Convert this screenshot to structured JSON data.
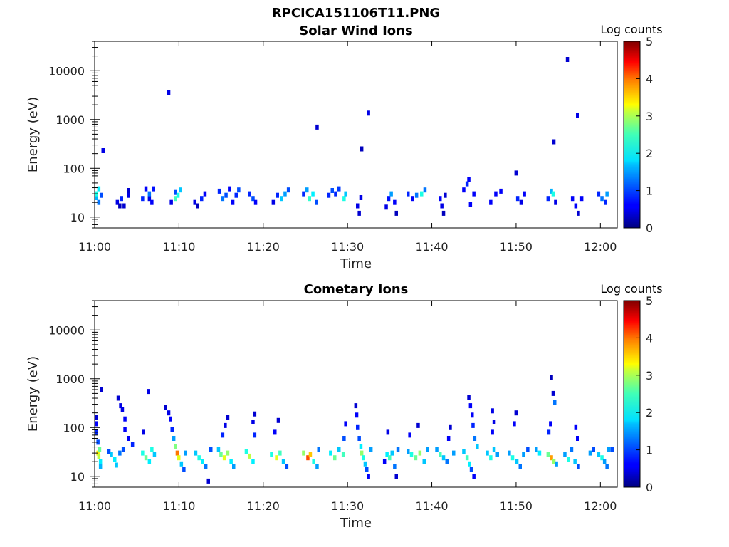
{
  "figure_title": "RPCICA151106T11.PNG",
  "chart_data": [
    {
      "type": "heatmap",
      "title": "Solar Wind Ions",
      "xlabel": "Time",
      "ylabel": "Energy (eV)",
      "x_ticks": [
        "11:00",
        "11:10",
        "11:20",
        "11:30",
        "11:40",
        "11:50",
        "12:00"
      ],
      "xlim_minutes": [
        0,
        62
      ],
      "y_ticks": [
        10,
        100,
        1000,
        10000
      ],
      "ylim": [
        6,
        40000
      ],
      "y_scale": "log",
      "colorbar_label": "Log counts",
      "colorbar_ticks": [
        0,
        1,
        2,
        3,
        4,
        5
      ],
      "color_range": [
        0,
        5
      ],
      "colormap": "jet",
      "grid": false,
      "cells": [
        [
          0.0,
          25,
          1.5
        ],
        [
          0.0,
          30,
          2.0
        ],
        [
          0.3,
          38,
          1.8
        ],
        [
          0.3,
          20,
          1.2
        ],
        [
          0.6,
          28,
          1.0
        ],
        [
          0.8,
          230,
          0.5
        ],
        [
          2.5,
          20,
          0.5
        ],
        [
          2.8,
          17,
          0.3
        ],
        [
          3.0,
          24,
          0.8
        ],
        [
          3.3,
          17,
          0.4
        ],
        [
          3.8,
          28,
          0.5
        ],
        [
          3.8,
          35,
          0.4
        ],
        [
          5.5,
          24,
          0.8
        ],
        [
          5.9,
          38,
          0.6
        ],
        [
          6.3,
          24,
          0.5
        ],
        [
          6.3,
          30,
          1.2
        ],
        [
          6.6,
          20,
          0.6
        ],
        [
          6.8,
          38,
          0.7
        ],
        [
          8.6,
          3600,
          0.5
        ],
        [
          8.9,
          20,
          0.5
        ],
        [
          9.4,
          32,
          1.0
        ],
        [
          9.4,
          24,
          2.2
        ],
        [
          9.7,
          28,
          2.0
        ],
        [
          10.0,
          36,
          1.6
        ],
        [
          11.7,
          20,
          0.5
        ],
        [
          12.0,
          17,
          0.3
        ],
        [
          12.5,
          24,
          0.8
        ],
        [
          12.9,
          30,
          0.6
        ],
        [
          14.6,
          34,
          0.8
        ],
        [
          15.0,
          24,
          1.2
        ],
        [
          15.4,
          28,
          1.0
        ],
        [
          15.8,
          38,
          0.6
        ],
        [
          16.2,
          20,
          0.6
        ],
        [
          16.6,
          28,
          0.8
        ],
        [
          16.9,
          36,
          1.0
        ],
        [
          18.2,
          30,
          0.8
        ],
        [
          18.6,
          24,
          1.0
        ],
        [
          18.9,
          20,
          0.6
        ],
        [
          21.0,
          20,
          0.5
        ],
        [
          21.5,
          28,
          0.8
        ],
        [
          22.0,
          24,
          1.6
        ],
        [
          22.4,
          30,
          1.4
        ],
        [
          22.8,
          36,
          1.0
        ],
        [
          24.6,
          30,
          0.8
        ],
        [
          25.0,
          36,
          1.4
        ],
        [
          25.3,
          24,
          2.1
        ],
        [
          25.7,
          30,
          1.8
        ],
        [
          26.1,
          20,
          1.0
        ],
        [
          26.2,
          700,
          0.4
        ],
        [
          27.6,
          28,
          0.8
        ],
        [
          28.0,
          35,
          1.0
        ],
        [
          28.4,
          30,
          0.8
        ],
        [
          28.8,
          38,
          0.9
        ],
        [
          29.4,
          24,
          2.0
        ],
        [
          29.6,
          30,
          1.6
        ],
        [
          31.0,
          17,
          0.5
        ],
        [
          31.2,
          12,
          0.4
        ],
        [
          31.4,
          25,
          0.5
        ],
        [
          31.5,
          250,
          0.3
        ],
        [
          32.3,
          1350,
          0.5
        ],
        [
          34.4,
          16,
          0.5
        ],
        [
          34.7,
          24,
          0.7
        ],
        [
          35.0,
          30,
          1.4
        ],
        [
          35.4,
          20,
          0.6
        ],
        [
          35.6,
          12,
          0.3
        ],
        [
          37.0,
          30,
          0.8
        ],
        [
          37.5,
          24,
          0.6
        ],
        [
          38.0,
          28,
          1.2
        ],
        [
          38.6,
          30,
          2.0
        ],
        [
          39.0,
          36,
          1.2
        ],
        [
          40.8,
          24,
          0.6
        ],
        [
          41.0,
          17,
          0.5
        ],
        [
          41.2,
          12,
          0.3
        ],
        [
          41.4,
          28,
          0.4
        ],
        [
          43.6,
          36,
          0.6
        ],
        [
          44.0,
          48,
          0.8
        ],
        [
          44.2,
          60,
          0.6
        ],
        [
          44.4,
          18,
          0.6
        ],
        [
          44.8,
          30,
          0.6
        ],
        [
          46.8,
          20,
          0.6
        ],
        [
          47.4,
          30,
          0.6
        ],
        [
          48.0,
          34,
          0.6
        ],
        [
          49.8,
          80,
          0.4
        ],
        [
          50.0,
          24,
          0.8
        ],
        [
          50.4,
          20,
          0.5
        ],
        [
          50.8,
          30,
          0.6
        ],
        [
          53.6,
          24,
          0.8
        ],
        [
          54.0,
          34,
          1.5
        ],
        [
          54.2,
          30,
          2.0
        ],
        [
          54.5,
          20,
          0.5
        ],
        [
          54.3,
          350,
          0.4
        ],
        [
          55.9,
          17000,
          0.4
        ],
        [
          57.1,
          1200,
          0.5
        ],
        [
          56.5,
          24,
          0.6
        ],
        [
          56.9,
          17,
          0.6
        ],
        [
          57.2,
          12,
          0.4
        ],
        [
          57.6,
          24,
          0.6
        ],
        [
          59.6,
          30,
          0.8
        ],
        [
          60.0,
          24,
          1.2
        ],
        [
          60.4,
          20,
          0.8
        ],
        [
          60.6,
          30,
          1.4
        ]
      ]
    },
    {
      "type": "heatmap",
      "title": "Cometary Ions",
      "xlabel": "Time",
      "ylabel": "Energy (eV)",
      "x_ticks": [
        "11:00",
        "11:10",
        "11:20",
        "11:30",
        "11:40",
        "11:50",
        "12:00"
      ],
      "xlim_minutes": [
        0,
        62
      ],
      "y_ticks": [
        10,
        100,
        1000,
        10000
      ],
      "ylim": [
        6,
        40000
      ],
      "y_scale": "log",
      "colorbar_label": "Log counts",
      "colorbar_ticks": [
        0,
        1,
        2,
        3,
        4,
        5
      ],
      "color_range": [
        0,
        5
      ],
      "colormap": "jet",
      "grid": false,
      "cells": [
        [
          0.0,
          160,
          0.4
        ],
        [
          0.0,
          120,
          0.6
        ],
        [
          0.0,
          80,
          0.8
        ],
        [
          0.2,
          50,
          1.0
        ],
        [
          0.2,
          30,
          3.2
        ],
        [
          0.3,
          25,
          2.8
        ],
        [
          0.4,
          36,
          2.4
        ],
        [
          0.5,
          20,
          1.8
        ],
        [
          0.5,
          16,
          1.5
        ],
        [
          0.6,
          600,
          0.4
        ],
        [
          1.5,
          32,
          1.0
        ],
        [
          1.8,
          28,
          1.6
        ],
        [
          2.2,
          22,
          1.8
        ],
        [
          2.4,
          17,
          1.6
        ],
        [
          2.8,
          30,
          1.2
        ],
        [
          3.2,
          36,
          1.0
        ],
        [
          2.6,
          400,
          0.4
        ],
        [
          2.9,
          280,
          0.5
        ],
        [
          3.1,
          230,
          0.5
        ],
        [
          3.4,
          150,
          0.6
        ],
        [
          3.4,
          90,
          0.6
        ],
        [
          3.8,
          60,
          0.6
        ],
        [
          4.3,
          45,
          0.8
        ],
        [
          5.5,
          30,
          2.0
        ],
        [
          5.9,
          24,
          2.4
        ],
        [
          6.3,
          20,
          1.8
        ],
        [
          6.6,
          35,
          2.0
        ],
        [
          6.9,
          28,
          1.6
        ],
        [
          6.2,
          550,
          0.5
        ],
        [
          5.6,
          80,
          0.5
        ],
        [
          8.2,
          260,
          0.4
        ],
        [
          8.6,
          200,
          0.5
        ],
        [
          8.8,
          150,
          0.6
        ],
        [
          9.0,
          90,
          0.8
        ],
        [
          9.2,
          60,
          1.4
        ],
        [
          9.4,
          40,
          2.5
        ],
        [
          9.6,
          30,
          3.8
        ],
        [
          9.8,
          24,
          3.0
        ],
        [
          10.1,
          18,
          1.6
        ],
        [
          10.4,
          14,
          1.0
        ],
        [
          10.6,
          30,
          1.4
        ],
        [
          11.8,
          30,
          1.6
        ],
        [
          12.2,
          24,
          2.0
        ],
        [
          12.6,
          20,
          1.8
        ],
        [
          13.0,
          16,
          1.2
        ],
        [
          13.3,
          8,
          0.4
        ],
        [
          13.6,
          36,
          1.0
        ],
        [
          14.5,
          36,
          1.6
        ],
        [
          14.8,
          28,
          2.4
        ],
        [
          15.2,
          24,
          3.0
        ],
        [
          15.6,
          30,
          2.6
        ],
        [
          16.0,
          20,
          1.8
        ],
        [
          16.3,
          16,
          1.4
        ],
        [
          15.0,
          70,
          0.8
        ],
        [
          15.3,
          110,
          0.5
        ],
        [
          15.6,
          160,
          0.4
        ],
        [
          17.8,
          32,
          2.0
        ],
        [
          18.2,
          26,
          2.8
        ],
        [
          18.6,
          20,
          1.8
        ],
        [
          18.8,
          70,
          0.8
        ],
        [
          18.6,
          130,
          0.5
        ],
        [
          18.8,
          190,
          0.4
        ],
        [
          20.8,
          28,
          2.0
        ],
        [
          21.4,
          24,
          3.0
        ],
        [
          21.8,
          30,
          2.2
        ],
        [
          22.2,
          20,
          1.6
        ],
        [
          22.6,
          16,
          1.0
        ],
        [
          21.2,
          80,
          0.6
        ],
        [
          21.6,
          140,
          0.4
        ],
        [
          24.6,
          30,
          2.6
        ],
        [
          25.1,
          24,
          4.0
        ],
        [
          25.4,
          28,
          3.4
        ],
        [
          25.8,
          20,
          2.0
        ],
        [
          26.2,
          16,
          1.4
        ],
        [
          26.4,
          36,
          1.2
        ],
        [
          27.8,
          30,
          1.8
        ],
        [
          28.3,
          24,
          2.4
        ],
        [
          28.8,
          36,
          1.6
        ],
        [
          29.3,
          28,
          2.2
        ],
        [
          29.4,
          60,
          1.0
        ],
        [
          29.6,
          120,
          0.6
        ],
        [
          30.8,
          280,
          0.4
        ],
        [
          30.9,
          180,
          0.6
        ],
        [
          31.0,
          100,
          0.8
        ],
        [
          31.2,
          60,
          1.0
        ],
        [
          31.4,
          40,
          1.8
        ],
        [
          31.5,
          30,
          2.6
        ],
        [
          31.7,
          24,
          2.0
        ],
        [
          31.9,
          18,
          1.6
        ],
        [
          32.1,
          14,
          1.0
        ],
        [
          32.3,
          10,
          0.6
        ],
        [
          32.6,
          36,
          1.4
        ],
        [
          34.2,
          20,
          0.6
        ],
        [
          34.5,
          28,
          1.8
        ],
        [
          34.8,
          24,
          2.2
        ],
        [
          35.1,
          30,
          1.6
        ],
        [
          35.4,
          16,
          1.2
        ],
        [
          35.6,
          10,
          0.4
        ],
        [
          34.6,
          80,
          0.5
        ],
        [
          35.8,
          36,
          1.2
        ],
        [
          37.0,
          32,
          1.4
        ],
        [
          37.4,
          28,
          2.0
        ],
        [
          37.9,
          24,
          2.4
        ],
        [
          38.4,
          30,
          2.6
        ],
        [
          38.9,
          20,
          1.6
        ],
        [
          39.3,
          36,
          1.4
        ],
        [
          37.2,
          70,
          0.6
        ],
        [
          38.2,
          110,
          0.4
        ],
        [
          40.4,
          36,
          1.4
        ],
        [
          40.8,
          28,
          2.2
        ],
        [
          41.2,
          24,
          1.6
        ],
        [
          41.6,
          20,
          1.2
        ],
        [
          41.8,
          60,
          0.6
        ],
        [
          42.0,
          100,
          0.4
        ],
        [
          42.4,
          30,
          1.4
        ],
        [
          43.6,
          32,
          1.6
        ],
        [
          44.0,
          24,
          2.2
        ],
        [
          44.3,
          18,
          1.8
        ],
        [
          44.5,
          14,
          1.0
        ],
        [
          44.8,
          10,
          0.6
        ],
        [
          44.2,
          420,
          0.4
        ],
        [
          44.4,
          280,
          0.6
        ],
        [
          44.6,
          180,
          0.6
        ],
        [
          44.7,
          110,
          0.8
        ],
        [
          44.9,
          60,
          1.2
        ],
        [
          45.2,
          40,
          1.6
        ],
        [
          46.4,
          30,
          1.6
        ],
        [
          46.8,
          24,
          2.0
        ],
        [
          47.2,
          36,
          1.6
        ],
        [
          47.6,
          28,
          1.4
        ],
        [
          47.0,
          220,
          0.5
        ],
        [
          47.2,
          130,
          0.5
        ],
        [
          47.0,
          80,
          0.6
        ],
        [
          49.0,
          30,
          1.4
        ],
        [
          49.4,
          24,
          2.0
        ],
        [
          49.9,
          20,
          1.6
        ],
        [
          50.3,
          16,
          1.2
        ],
        [
          50.7,
          28,
          1.4
        ],
        [
          49.8,
          200,
          0.4
        ],
        [
          49.6,
          120,
          0.6
        ],
        [
          51.2,
          36,
          1.0
        ],
        [
          52.2,
          36,
          1.4
        ],
        [
          52.6,
          30,
          1.8
        ],
        [
          53.6,
          28,
          2.4
        ],
        [
          54.0,
          24,
          3.6
        ],
        [
          54.3,
          20,
          2.6
        ],
        [
          54.6,
          18,
          1.4
        ],
        [
          54.0,
          1050,
          0.3
        ],
        [
          54.2,
          500,
          0.4
        ],
        [
          54.4,
          330,
          1.2
        ],
        [
          53.9,
          120,
          0.6
        ],
        [
          53.7,
          80,
          0.8
        ],
        [
          55.6,
          28,
          1.4
        ],
        [
          56.0,
          22,
          2.0
        ],
        [
          56.4,
          36,
          1.2
        ],
        [
          56.8,
          20,
          1.6
        ],
        [
          57.2,
          16,
          1.0
        ],
        [
          56.9,
          100,
          0.6
        ],
        [
          57.1,
          60,
          0.6
        ],
        [
          58.6,
          30,
          1.4
        ],
        [
          59.0,
          36,
          1.0
        ],
        [
          59.6,
          28,
          1.6
        ],
        [
          60.0,
          24,
          2.0
        ],
        [
          60.3,
          20,
          1.4
        ],
        [
          60.6,
          16,
          1.2
        ],
        [
          60.8,
          36,
          1.4
        ],
        [
          61.2,
          36,
          1.0
        ]
      ]
    }
  ]
}
